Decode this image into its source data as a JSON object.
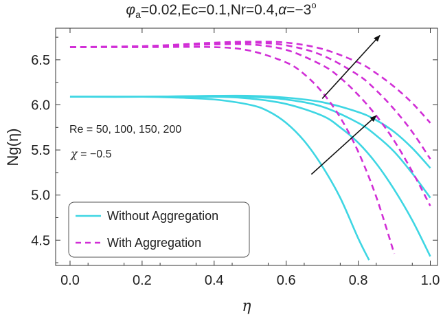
{
  "chart_data": {
    "type": "line",
    "title_parts": {
      "phi_symbol": "φ",
      "phi_sub": "a",
      "mid": "=0.02,Ec=0.1,Nr=0.4,",
      "alpha_symbol": "α",
      "alpha_value": "=−3",
      "degree": "o"
    },
    "xlabel": "η",
    "ylabel": "Ng(η)",
    "xlim": [
      -0.04,
      1.02
    ],
    "ylim": [
      4.22,
      6.85
    ],
    "x_ticks": [
      0.0,
      0.2,
      0.4,
      0.6,
      0.8,
      1.0
    ],
    "x_tick_labels": [
      "0.0",
      "0.2",
      "0.4",
      "0.6",
      "0.8",
      "1.0"
    ],
    "y_ticks": [
      4.5,
      5.0,
      5.5,
      6.0,
      6.5
    ],
    "y_tick_labels": [
      "4.5",
      "5.0",
      "5.5",
      "6.0",
      "6.5"
    ],
    "annotations": {
      "re_text": "Re = 50, 100, 150, 200",
      "chi_symbol": "χ",
      "chi_value": " = −0.5"
    },
    "arrows": [
      {
        "from": [
          0.7,
          6.07
        ],
        "to": [
          0.86,
          6.77
        ]
      },
      {
        "from": [
          0.67,
          5.23
        ],
        "to": [
          0.85,
          5.88
        ]
      }
    ],
    "legend": [
      {
        "label": "Without Aggregation",
        "style": "solid",
        "color": "#3ed6e3"
      },
      {
        "label": "With Aggregation",
        "style": "dashed",
        "color": "#d12ed6"
      }
    ],
    "series": [
      {
        "name": "Without Aggregation, Re=50",
        "style": "solid",
        "color": "#3ed6e3",
        "x": [
          0.0,
          0.2,
          0.3,
          0.4,
          0.5,
          0.55,
          0.6,
          0.65,
          0.7,
          0.75,
          0.8,
          0.83
        ],
        "y": [
          6.09,
          6.09,
          6.08,
          6.06,
          6.0,
          5.93,
          5.8,
          5.6,
          5.32,
          4.97,
          4.52,
          4.28
        ]
      },
      {
        "name": "Without Aggregation, Re=100",
        "style": "solid",
        "color": "#3ed6e3",
        "x": [
          0.0,
          0.2,
          0.4,
          0.5,
          0.6,
          0.7,
          0.75,
          0.8,
          0.85,
          0.9,
          0.95,
          1.0
        ],
        "y": [
          6.09,
          6.09,
          6.09,
          6.07,
          6.01,
          5.88,
          5.75,
          5.58,
          5.35,
          5.06,
          4.72,
          4.32
        ]
      },
      {
        "name": "Without Aggregation, Re=150",
        "style": "solid",
        "color": "#3ed6e3",
        "x": [
          0.0,
          0.2,
          0.4,
          0.5,
          0.6,
          0.7,
          0.8,
          0.85,
          0.9,
          0.95,
          1.0
        ],
        "y": [
          6.09,
          6.09,
          6.1,
          6.09,
          6.06,
          5.98,
          5.8,
          5.66,
          5.48,
          5.24,
          4.97
        ]
      },
      {
        "name": "Without Aggregation, Re=200",
        "style": "solid",
        "color": "#3ed6e3",
        "x": [
          0.0,
          0.2,
          0.4,
          0.5,
          0.6,
          0.7,
          0.8,
          0.85,
          0.9,
          0.95,
          1.0
        ],
        "y": [
          6.09,
          6.09,
          6.1,
          6.1,
          6.08,
          6.03,
          5.92,
          5.83,
          5.7,
          5.52,
          5.3
        ]
      },
      {
        "name": "With Aggregation, Re=50",
        "style": "dashed",
        "color": "#d12ed6",
        "x": [
          0.0,
          0.2,
          0.4,
          0.5,
          0.6,
          0.65,
          0.7,
          0.75,
          0.8,
          0.85,
          0.9
        ],
        "y": [
          6.64,
          6.64,
          6.64,
          6.6,
          6.47,
          6.34,
          6.14,
          5.86,
          5.48,
          4.98,
          4.35
        ]
      },
      {
        "name": "With Aggregation, Re=100",
        "style": "dashed",
        "color": "#d12ed6",
        "x": [
          0.0,
          0.2,
          0.4,
          0.5,
          0.6,
          0.7,
          0.75,
          0.8,
          0.85,
          0.9,
          0.95,
          1.0
        ],
        "y": [
          6.64,
          6.65,
          6.67,
          6.67,
          6.61,
          6.44,
          6.3,
          6.11,
          5.88,
          5.6,
          5.26,
          4.88
        ]
      },
      {
        "name": "With Aggregation, Re=150",
        "style": "dashed",
        "color": "#d12ed6",
        "x": [
          0.0,
          0.2,
          0.4,
          0.5,
          0.6,
          0.7,
          0.8,
          0.85,
          0.9,
          0.95,
          1.0
        ],
        "y": [
          6.64,
          6.65,
          6.68,
          6.69,
          6.66,
          6.55,
          6.33,
          6.16,
          5.95,
          5.7,
          5.4
        ]
      },
      {
        "name": "With Aggregation, Re=200",
        "style": "dashed",
        "color": "#d12ed6",
        "x": [
          0.0,
          0.2,
          0.4,
          0.5,
          0.6,
          0.7,
          0.8,
          0.85,
          0.9,
          0.95,
          1.0
        ],
        "y": [
          6.64,
          6.65,
          6.69,
          6.7,
          6.69,
          6.62,
          6.47,
          6.35,
          6.2,
          6.02,
          5.8
        ]
      }
    ]
  }
}
